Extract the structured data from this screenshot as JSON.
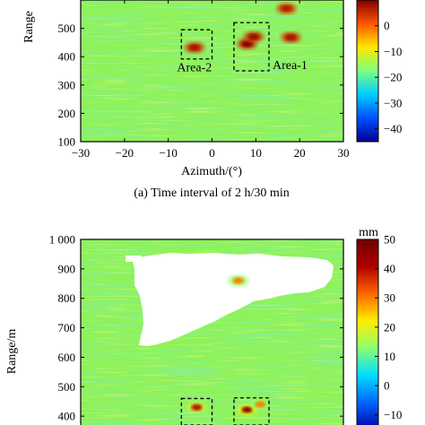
{
  "chart_data": [
    {
      "type": "heatmap",
      "title": "",
      "caption": "(a) Time interval of 2 h/30 min",
      "xlabel": "Azimuth/(°)",
      "ylabel": "Range/m",
      "ylabel_visible": "Range",
      "xlim": [
        -30,
        30
      ],
      "ylim": [
        100,
        600
      ],
      "x_ticks": [
        "−30",
        "−20",
        "−10",
        "0",
        "10",
        "20",
        "30"
      ],
      "x_tick_values": [
        -30,
        -20,
        -10,
        0,
        10,
        20,
        30
      ],
      "y_ticks": [
        "100",
        "200",
        "300",
        "400",
        "500"
      ],
      "y_tick_values": [
        100,
        200,
        300,
        400,
        500
      ],
      "colorbar": {
        "range": [
          -45,
          10
        ],
        "ticks": [
          "0",
          "−10",
          "−20",
          "−30",
          "−40"
        ],
        "tick_values": [
          0,
          -10,
          -20,
          -30,
          -40
        ],
        "colors": [
          "#00008f",
          "#0050ff",
          "#00ccff",
          "#7fff7f",
          "#ffe800",
          "#ff5500",
          "#800000"
        ]
      },
      "background_color": "#8ef25a",
      "annotations": [
        {
          "label": "Area-1",
          "x0": 5,
          "x1": 13,
          "y0": 350,
          "y1": 520
        },
        {
          "label": "Area-2",
          "x0": -7,
          "x1": 0,
          "y0": 392,
          "y1": 495
        }
      ],
      "features": [
        {
          "kind": "streak",
          "x0": -18,
          "x1": -4,
          "y": 415,
          "value": -12
        },
        {
          "kind": "hotspot",
          "x": -4,
          "y": 432,
          "value": 8
        },
        {
          "kind": "hotspot",
          "x": 8,
          "y": 445,
          "value": 10
        },
        {
          "kind": "hotspot",
          "x": 9.5,
          "y": 470,
          "value": 9
        },
        {
          "kind": "hotspot",
          "x": 18,
          "y": 468,
          "value": 8
        },
        {
          "kind": "hotspot",
          "x": 17,
          "y": 570,
          "value": 7
        },
        {
          "kind": "streak",
          "x0": 5,
          "x1": 10,
          "y": 170,
          "value": 8
        },
        {
          "kind": "streak",
          "x0": 15,
          "x1": 24,
          "y": 470,
          "value": 6
        }
      ]
    },
    {
      "type": "heatmap",
      "title": "",
      "xlabel": "",
      "ylabel": "Range/m",
      "xlim": [
        -30,
        30
      ],
      "ylim": [
        370,
        1000
      ],
      "y_ticks": [
        "400",
        "500",
        "600",
        "700",
        "800",
        "900",
        "1 000"
      ],
      "y_tick_values": [
        400,
        500,
        600,
        700,
        800,
        900,
        1000
      ],
      "colorbar": {
        "unit": "mm",
        "range": [
          -15,
          50
        ],
        "ticks": [
          "50",
          "40",
          "30",
          "20",
          "10",
          "0",
          "−10"
        ],
        "tick_values": [
          50,
          40,
          30,
          20,
          10,
          0,
          -10
        ],
        "colors": [
          "#0000a0",
          "#0066ff",
          "#00ddff",
          "#8cff6e",
          "#ffee00",
          "#ff6600",
          "#b00000",
          "#700000"
        ]
      },
      "background_color": "#8ef25a",
      "no_data_region": "upper-middle (white)",
      "annotations": [
        {
          "label": "",
          "x0": -7,
          "x1": 0,
          "y0": 370,
          "y1": 460
        },
        {
          "label": "",
          "x0": 5,
          "x1": 13,
          "y0": 370,
          "y1": 462
        }
      ],
      "features": [
        {
          "kind": "streak",
          "x0": -28,
          "x1": -15,
          "y": 565,
          "value": -8
        },
        {
          "kind": "streak",
          "x0": -18,
          "x1": -4,
          "y": 420,
          "value": 10
        },
        {
          "kind": "hotspot",
          "x": -3.5,
          "y": 430,
          "value": 40
        },
        {
          "kind": "hotspot",
          "x": 8,
          "y": 422,
          "value": 45
        },
        {
          "kind": "hotspot",
          "x": 11,
          "y": 440,
          "value": 30
        },
        {
          "kind": "streak",
          "x0": 11,
          "x1": 22,
          "y": 440,
          "value": 20
        },
        {
          "kind": "hotspot",
          "x": 6,
          "y": 860,
          "value": 30
        }
      ]
    }
  ]
}
